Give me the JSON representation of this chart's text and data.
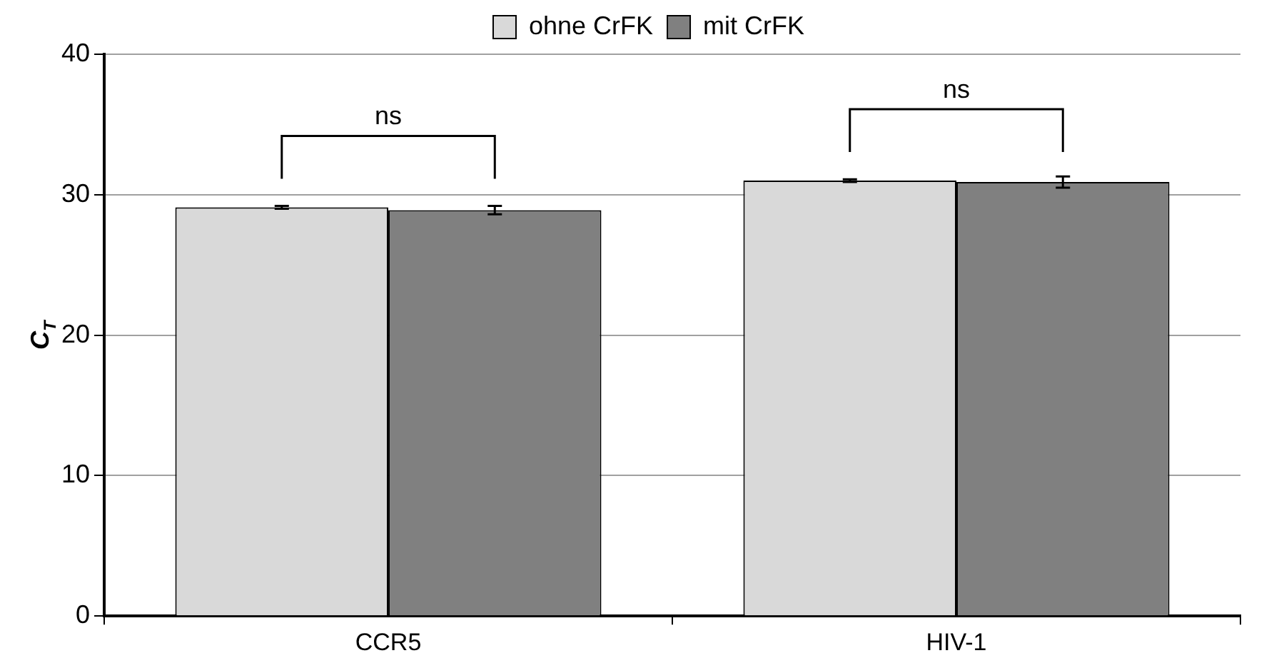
{
  "chart_data": {
    "type": "bar",
    "ylabel": "C$_{T}$",
    "categories": [
      "CCR5",
      "HIV-1"
    ],
    "series": [
      {
        "name": "ohne CrFK",
        "color": "#d9d9d9",
        "values": [
          29.1,
          31.0
        ],
        "errors": [
          0.1,
          0.1
        ]
      },
      {
        "name": "mit CrFK",
        "color": "#808080",
        "values": [
          28.9,
          30.9
        ],
        "errors": [
          0.3,
          0.4
        ]
      }
    ],
    "ylim": [
      0,
      40
    ],
    "yticks": [
      0,
      10,
      20,
      30,
      40
    ],
    "grid": "y",
    "legend": "top",
    "annotations": [
      "ns",
      "ns"
    ]
  }
}
